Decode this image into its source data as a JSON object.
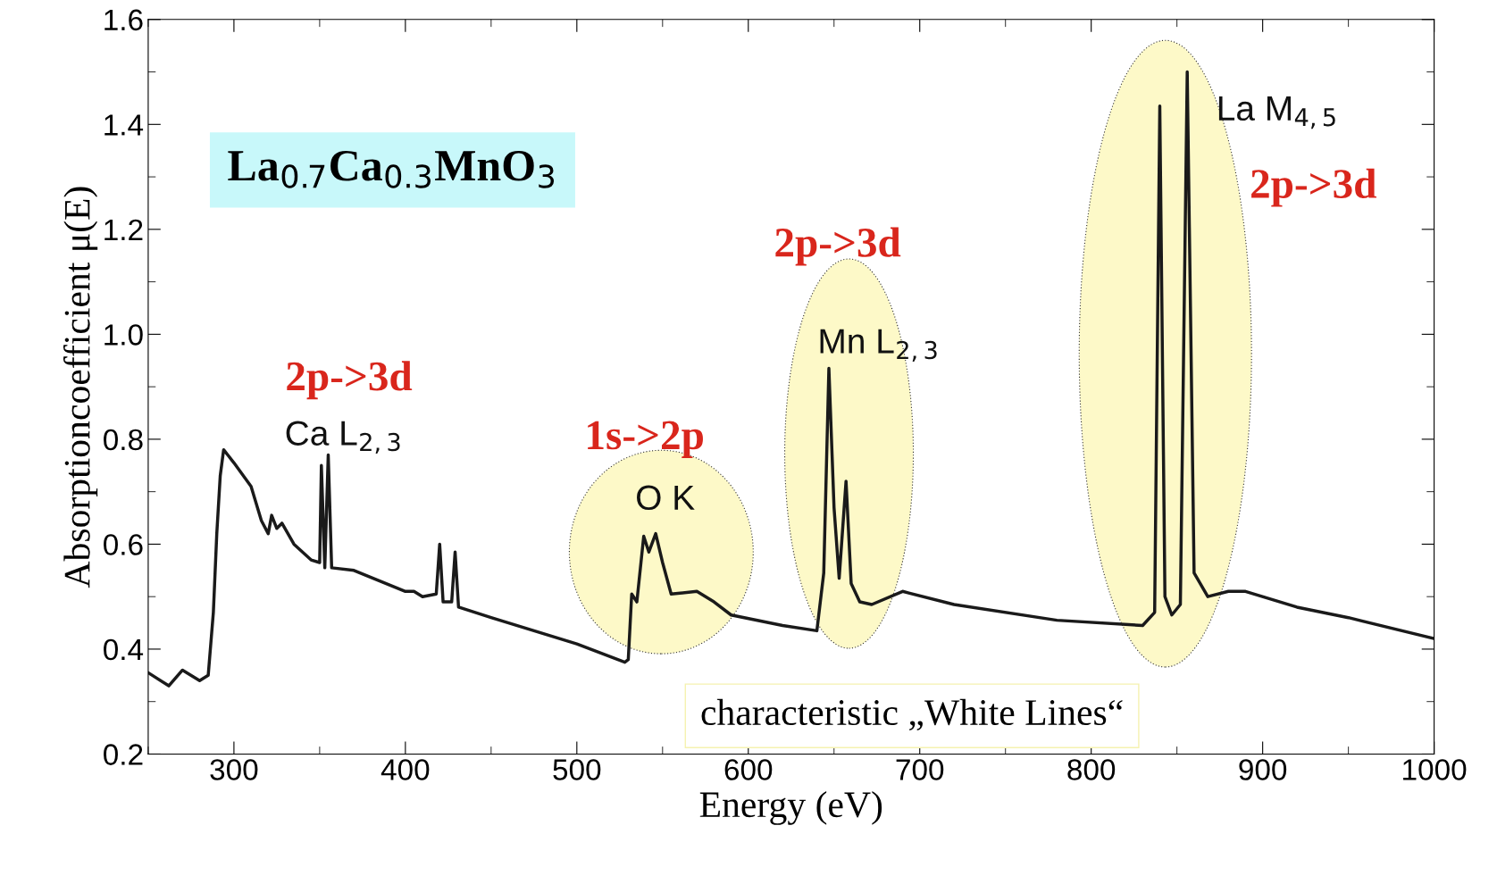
{
  "chart_data": {
    "type": "line",
    "xlabel": "Energy (eV)",
    "ylabel": "Absorptioncoefficient μ(E)",
    "x": [
      250,
      262,
      270,
      280,
      285,
      288,
      290,
      292,
      294,
      300,
      310,
      316,
      320,
      322,
      325,
      328,
      335,
      345,
      350,
      351,
      353,
      355,
      357,
      370,
      400,
      405,
      410,
      418,
      420,
      422,
      427,
      429,
      431,
      450,
      500,
      528,
      530,
      532,
      535,
      539,
      542,
      546,
      550,
      555,
      570,
      580,
      590,
      620,
      640,
      644,
      647,
      650,
      653,
      657,
      660,
      665,
      672,
      690,
      720,
      780,
      830,
      837,
      840,
      843,
      847,
      852,
      856,
      860,
      868,
      880,
      890,
      920,
      950,
      1000
    ],
    "series": [
      {
        "color": "#1a1a1a",
        "values": [
          0.355,
          0.33,
          0.36,
          0.34,
          0.35,
          0.47,
          0.62,
          0.73,
          0.78,
          0.755,
          0.71,
          0.645,
          0.62,
          0.655,
          0.63,
          0.64,
          0.6,
          0.57,
          0.565,
          0.75,
          0.555,
          0.77,
          0.555,
          0.55,
          0.51,
          0.51,
          0.5,
          0.505,
          0.6,
          0.49,
          0.49,
          0.585,
          0.48,
          0.46,
          0.41,
          0.375,
          0.38,
          0.505,
          0.49,
          0.615,
          0.585,
          0.62,
          0.565,
          0.505,
          0.51,
          0.49,
          0.465,
          0.445,
          0.435,
          0.545,
          0.935,
          0.67,
          0.535,
          0.72,
          0.525,
          0.49,
          0.485,
          0.51,
          0.485,
          0.455,
          0.445,
          0.47,
          1.435,
          0.5,
          0.465,
          0.485,
          1.5,
          0.545,
          0.5,
          0.51,
          0.51,
          0.48,
          0.46,
          0.42
        ]
      }
    ],
    "xlim": [
      250,
      1000
    ],
    "ylim": [
      0.2,
      1.6
    ],
    "xticks": [
      300,
      400,
      500,
      600,
      700,
      800,
      900,
      1000
    ],
    "yticks": [
      0.2,
      0.4,
      0.6,
      0.8,
      {
        "value": 1,
        "label": "1.0"
      },
      1.2,
      1.4,
      1.6
    ],
    "grid": false,
    "legend": false,
    "marker": "none",
    "line_style": "solid",
    "annotations": [
      "La$_{0.7}$Ca$_{0.3}$MnO$_{3}$",
      "characteristic „White Lines“",
      "2p->3d",
      "Ca L$_{2,3}$",
      "1s->2p",
      "O K",
      "2p->3d",
      "Mn L$_{2,3}$",
      "La M$_{4,5}$",
      "2p->3d"
    ]
  }
}
